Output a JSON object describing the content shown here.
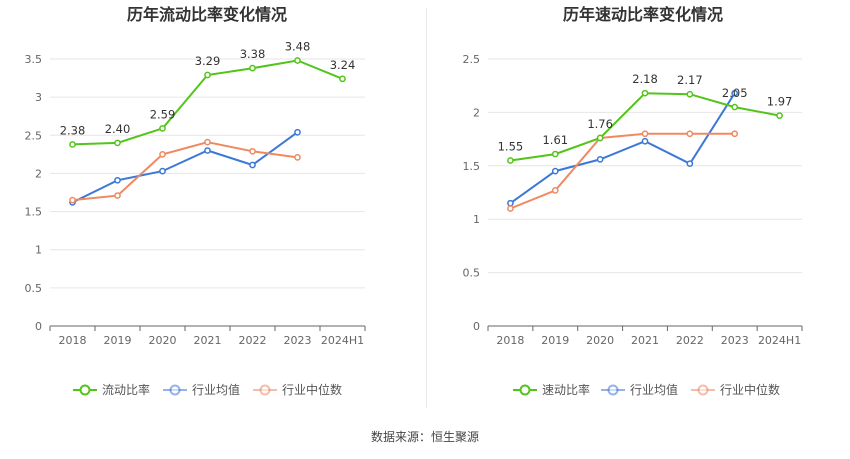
{
  "source_text": "数据来源：恒生聚源",
  "chart_data": [
    {
      "type": "line",
      "title": "历年流动比率变化情况",
      "categories": [
        "2018",
        "2019",
        "2020",
        "2021",
        "2022",
        "2023",
        "2024H1"
      ],
      "y_ticks": [
        "0",
        "0.5",
        "1",
        "1.5",
        "2",
        "2.5",
        "3",
        "3.5"
      ],
      "ylim": [
        0,
        3.5
      ],
      "grid": true,
      "legend_position": "bottom",
      "series": [
        {
          "name": "流动比率",
          "color": "#52c41a",
          "values": [
            2.38,
            2.4,
            2.59,
            3.29,
            3.38,
            3.48,
            3.24
          ],
          "labels": [
            "2.38",
            "2.40",
            "2.59",
            "3.29",
            "3.38",
            "3.48",
            "3.24"
          ]
        },
        {
          "name": "行业均值",
          "color": "#3b78d8",
          "values": [
            1.62,
            1.91,
            2.03,
            2.3,
            2.11,
            2.54,
            null
          ]
        },
        {
          "name": "行业中位数",
          "color": "#f08860",
          "values": [
            1.65,
            1.71,
            2.25,
            2.41,
            2.29,
            2.21,
            null
          ]
        }
      ]
    },
    {
      "type": "line",
      "title": "历年速动比率变化情况",
      "categories": [
        "2018",
        "2019",
        "2020",
        "2021",
        "2022",
        "2023",
        "2024H1"
      ],
      "y_ticks": [
        "0",
        "0.5",
        "1",
        "1.5",
        "2",
        "2.5"
      ],
      "ylim": [
        0,
        2.5
      ],
      "grid": true,
      "legend_position": "bottom",
      "series": [
        {
          "name": "速动比率",
          "color": "#52c41a",
          "values": [
            1.55,
            1.61,
            1.76,
            2.18,
            2.17,
            2.05,
            1.97
          ],
          "labels": [
            "1.55",
            "1.61",
            "1.76",
            "2.18",
            "2.17",
            "2.05",
            "1.97"
          ]
        },
        {
          "name": "行业均值",
          "color": "#3b78d8",
          "values": [
            1.15,
            1.45,
            1.56,
            1.73,
            1.52,
            2.18,
            null
          ]
        },
        {
          "name": "行业中位数",
          "color": "#f08860",
          "values": [
            1.1,
            1.27,
            1.76,
            1.8,
            1.8,
            1.8,
            null
          ]
        }
      ]
    }
  ]
}
